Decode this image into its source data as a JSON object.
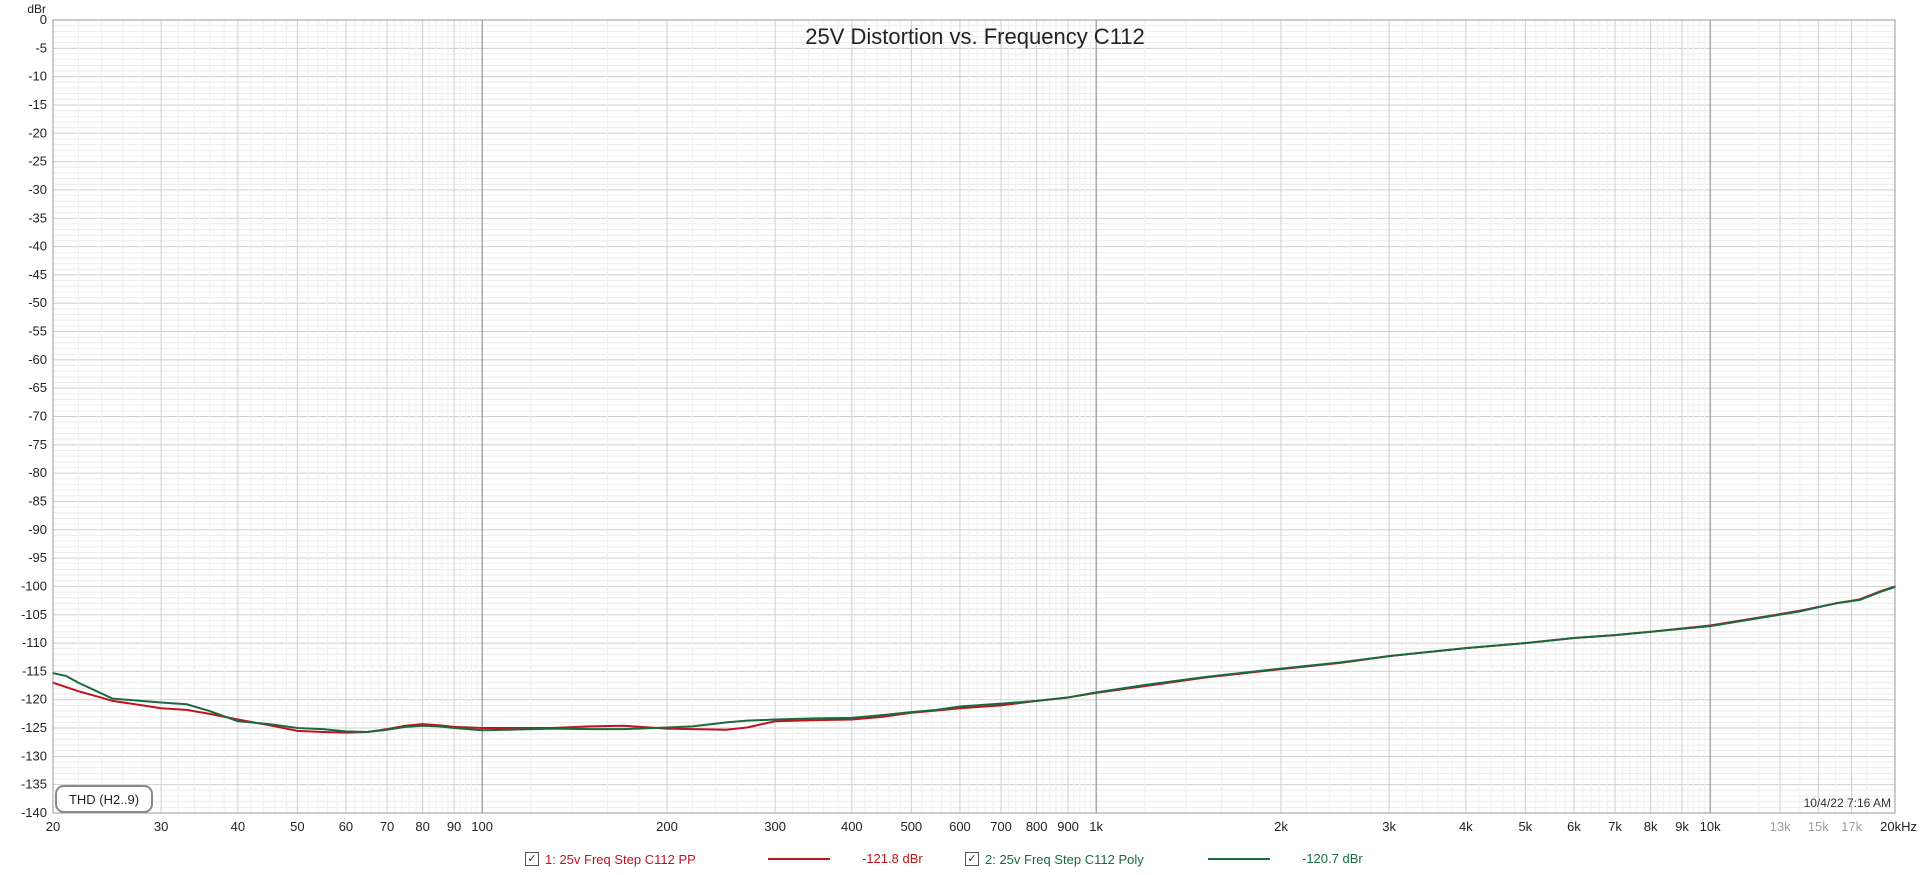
{
  "chart_data": {
    "type": "line",
    "title": "25V Distortion vs. Frequency C112",
    "ylabel": "dBr",
    "xscale": "log",
    "xlim": [
      20,
      20000
    ],
    "ylim": [
      -140,
      0
    ],
    "grid": true,
    "x_ticks": [
      {
        "v": 20,
        "label": "20"
      },
      {
        "v": 30,
        "label": "30"
      },
      {
        "v": 40,
        "label": "40"
      },
      {
        "v": 50,
        "label": "50"
      },
      {
        "v": 60,
        "label": "60"
      },
      {
        "v": 70,
        "label": "70"
      },
      {
        "v": 80,
        "label": "80"
      },
      {
        "v": 90,
        "label": "90"
      },
      {
        "v": 100,
        "label": "100"
      },
      {
        "v": 200,
        "label": "200"
      },
      {
        "v": 300,
        "label": "300"
      },
      {
        "v": 400,
        "label": "400"
      },
      {
        "v": 500,
        "label": "500"
      },
      {
        "v": 600,
        "label": "600"
      },
      {
        "v": 700,
        "label": "700"
      },
      {
        "v": 800,
        "label": "800"
      },
      {
        "v": 900,
        "label": "900"
      },
      {
        "v": 1000,
        "label": "1k"
      },
      {
        "v": 2000,
        "label": "2k"
      },
      {
        "v": 3000,
        "label": "3k"
      },
      {
        "v": 4000,
        "label": "4k"
      },
      {
        "v": 5000,
        "label": "5k"
      },
      {
        "v": 6000,
        "label": "6k"
      },
      {
        "v": 7000,
        "label": "7k"
      },
      {
        "v": 8000,
        "label": "8k"
      },
      {
        "v": 9000,
        "label": "9k"
      },
      {
        "v": 10000,
        "label": "10k"
      },
      {
        "v": 13000,
        "label": "13k",
        "faded": true
      },
      {
        "v": 15000,
        "label": "15k",
        "faded": true
      },
      {
        "v": 17000,
        "label": "17k",
        "faded": true
      },
      {
        "v": 20000,
        "label": "20kHz"
      }
    ],
    "y_ticks": [
      0,
      -5,
      -10,
      -15,
      -20,
      -25,
      -30,
      -35,
      -40,
      -45,
      -50,
      -55,
      -60,
      -65,
      -70,
      -75,
      -80,
      -85,
      -90,
      -95,
      -100,
      -105,
      -110,
      -115,
      -120,
      -125,
      -130,
      -135,
      -140
    ],
    "annotation": "THD (H2..9)",
    "timestamp": "10/4/22 7:16 AM",
    "series": [
      {
        "name": "1: 25v Freq Step C112 PP",
        "color": "#c0141c",
        "value_label": "-121.8 dBr",
        "x": [
          20,
          22,
          25,
          30,
          33,
          36,
          40,
          45,
          50,
          55,
          60,
          65,
          70,
          75,
          80,
          85,
          90,
          100,
          110,
          130,
          150,
          170,
          200,
          220,
          250,
          270,
          300,
          350,
          400,
          450,
          500,
          550,
          600,
          700,
          800,
          900,
          1000,
          1200,
          1500,
          2000,
          2500,
          3000,
          4000,
          5000,
          6000,
          7000,
          8000,
          10000,
          12000,
          14000,
          16000,
          17500,
          19000,
          20000
        ],
        "y": [
          -117,
          -118.5,
          -120.2,
          -121.5,
          -121.8,
          -122.5,
          -123.5,
          -124.5,
          -125.5,
          -125.7,
          -125.8,
          -125.7,
          -125.2,
          -124.6,
          -124.3,
          -124.5,
          -124.8,
          -125.0,
          -125.0,
          -125.0,
          -124.7,
          -124.6,
          -125.1,
          -125.2,
          -125.3,
          -124.9,
          -123.8,
          -123.6,
          -123.5,
          -123.0,
          -122.3,
          -121.9,
          -121.5,
          -121.0,
          -120.2,
          -119.6,
          -118.8,
          -117.6,
          -116.1,
          -114.6,
          -113.5,
          -112.3,
          -110.9,
          -110.0,
          -109.1,
          -108.6,
          -108.0,
          -106.9,
          -105.5,
          -104.3,
          -103.0,
          -102.3,
          -100.8,
          -100.0
        ]
      },
      {
        "name": "2: 25v Freq Step C112 Poly",
        "color": "#1a6a40",
        "value_label": "-120.7 dBr",
        "x": [
          20,
          21,
          22,
          25,
          30,
          33,
          36,
          40,
          45,
          50,
          55,
          60,
          65,
          70,
          75,
          80,
          85,
          90,
          100,
          110,
          130,
          150,
          170,
          200,
          220,
          250,
          270,
          300,
          350,
          400,
          450,
          500,
          550,
          600,
          700,
          800,
          900,
          1000,
          1200,
          1500,
          2000,
          2500,
          3000,
          4000,
          5000,
          6000,
          7000,
          8000,
          10000,
          12000,
          14000,
          16000,
          17500,
          19000,
          20000
        ],
        "y": [
          -115.3,
          -115.8,
          -117.0,
          -119.8,
          -120.5,
          -120.8,
          -122.0,
          -123.8,
          -124.3,
          -125.0,
          -125.2,
          -125.6,
          -125.7,
          -125.3,
          -124.8,
          -124.6,
          -124.7,
          -125.0,
          -125.4,
          -125.3,
          -125.1,
          -125.2,
          -125.2,
          -124.9,
          -124.7,
          -124.0,
          -123.7,
          -123.5,
          -123.3,
          -123.2,
          -122.7,
          -122.2,
          -121.8,
          -121.2,
          -120.7,
          -120.2,
          -119.6,
          -118.7,
          -117.4,
          -116.0,
          -114.5,
          -113.4,
          -112.3,
          -110.9,
          -110.0,
          -109.1,
          -108.6,
          -108.0,
          -107.0,
          -105.6,
          -104.4,
          -103.0,
          -102.4,
          -100.9,
          -100.1
        ]
      }
    ]
  }
}
